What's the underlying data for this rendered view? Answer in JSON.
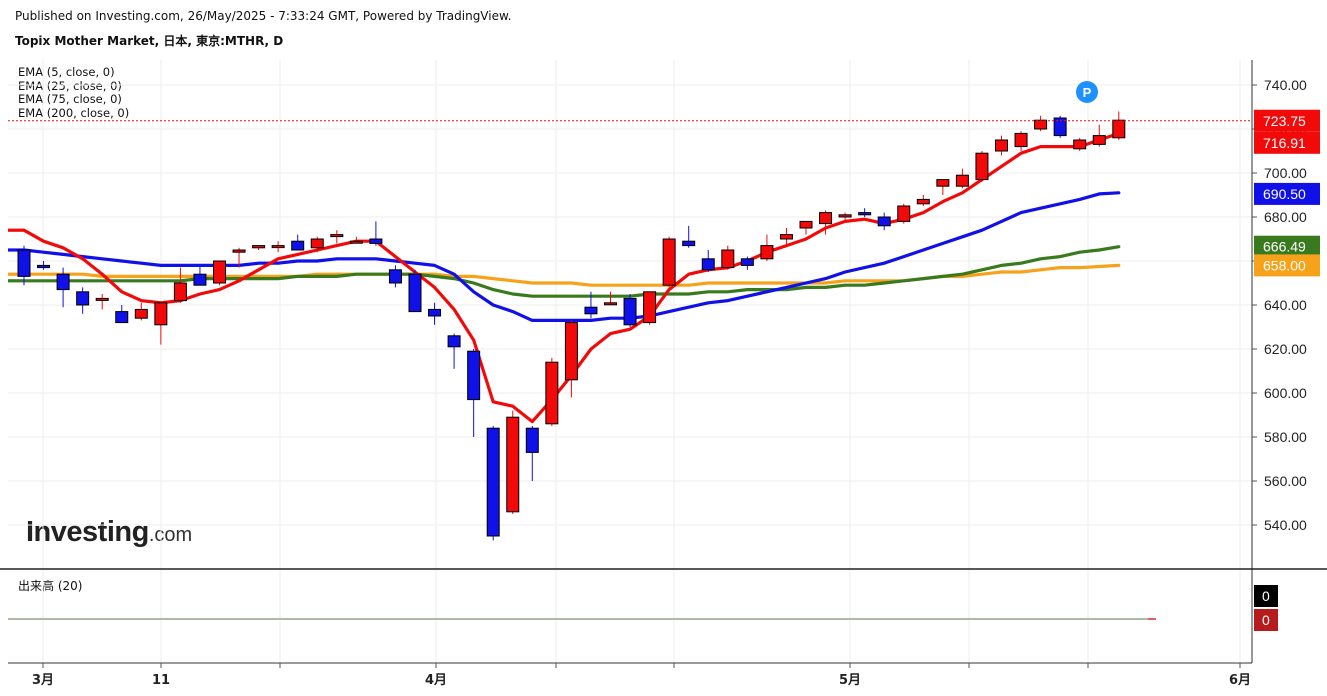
{
  "header": {
    "published": "Published on Investing.com, 26/May/2025 - 7:33:24 GMT, Powered by TradingView.",
    "symbol": "Topix Mother Market, 日本, 東京:MTHR, D"
  },
  "legend": {
    "items": [
      "EMA (5, close, 0)",
      "EMA (25, close, 0)",
      "EMA (75, close, 0)",
      "EMA (200, close, 0)"
    ]
  },
  "volume_panel": {
    "label": "出来高 (20)"
  },
  "logo": {
    "main": "Investing",
    "suffix": ".com"
  },
  "badge": {
    "text": "P"
  },
  "colors": {
    "up": "#f20a0a",
    "down": "#1010e8",
    "ema5": "#f20a0a",
    "ema25": "#1010e8",
    "ema75": "#3a7a1e",
    "ema200": "#f7a21b",
    "last_price_line": "#f20a0a",
    "badge": "#1e90ff"
  },
  "chart_data": {
    "type": "candlestick",
    "ylim": [
      520,
      747
    ],
    "y_ticks": [
      "740.00",
      "720.00",
      "700.00",
      "680.00",
      "660.00",
      "640.00",
      "620.00",
      "600.00",
      "580.00",
      "560.00",
      "540.00"
    ],
    "x_ticks": [
      "3月",
      "11",
      "4月",
      "5月",
      "6月"
    ],
    "price_labels": [
      {
        "text": "723.75",
        "value": 723.75,
        "bg": "#f20a0a"
      },
      {
        "text": "716.91",
        "value": 716.91,
        "bg": "#f20a0a"
      },
      {
        "text": "690.50",
        "value": 690.5,
        "bg": "#1010e8"
      },
      {
        "text": "666.49",
        "value": 666.49,
        "bg": "#3a7a1e"
      },
      {
        "text": "658.00",
        "value": 658.0,
        "bg": "#f7a21b"
      }
    ],
    "last_price": 723.75,
    "candles": [
      {
        "o": 665,
        "h": 667,
        "l": 649,
        "c": 653
      },
      {
        "o": 658,
        "h": 660,
        "l": 656,
        "c": 657
      },
      {
        "o": 654,
        "h": 657,
        "l": 639,
        "c": 647
      },
      {
        "o": 646,
        "h": 648,
        "l": 636,
        "c": 640
      },
      {
        "o": 643,
        "h": 645,
        "l": 638,
        "c": 643
      },
      {
        "o": 637,
        "h": 640,
        "l": 632,
        "c": 632
      },
      {
        "o": 634,
        "h": 641,
        "l": 633,
        "c": 638
      },
      {
        "o": 631,
        "h": 641,
        "l": 622,
        "c": 641
      },
      {
        "o": 642,
        "h": 657,
        "l": 641,
        "c": 650
      },
      {
        "o": 654,
        "h": 658,
        "l": 649,
        "c": 649
      },
      {
        "o": 650,
        "h": 660,
        "l": 649,
        "c": 660
      },
      {
        "o": 664,
        "h": 666,
        "l": 657,
        "c": 665
      },
      {
        "o": 666,
        "h": 667,
        "l": 665,
        "c": 667
      },
      {
        "o": 667,
        "h": 669,
        "l": 664,
        "c": 667
      },
      {
        "o": 669,
        "h": 672,
        "l": 665,
        "c": 665
      },
      {
        "o": 666,
        "h": 671,
        "l": 664,
        "c": 670
      },
      {
        "o": 672,
        "h": 674,
        "l": 668,
        "c": 672
      },
      {
        "o": 669,
        "h": 671,
        "l": 668,
        "c": 669
      },
      {
        "o": 670,
        "h": 678,
        "l": 667,
        "c": 668
      },
      {
        "o": 656,
        "h": 658,
        "l": 648,
        "c": 650
      },
      {
        "o": 654,
        "h": 656,
        "l": 637,
        "c": 637
      },
      {
        "o": 638,
        "h": 641,
        "l": 631,
        "c": 635
      },
      {
        "o": 626,
        "h": 627,
        "l": 611,
        "c": 621
      },
      {
        "o": 619,
        "h": 620,
        "l": 580,
        "c": 597
      },
      {
        "o": 584,
        "h": 585,
        "l": 533,
        "c": 535
      },
      {
        "o": 546,
        "h": 592,
        "l": 545,
        "c": 589
      },
      {
        "o": 584,
        "h": 585,
        "l": 560,
        "c": 573
      },
      {
        "o": 586,
        "h": 616,
        "l": 585,
        "c": 614
      },
      {
        "o": 606,
        "h": 633,
        "l": 598,
        "c": 632
      },
      {
        "o": 639,
        "h": 646,
        "l": 634,
        "c": 636
      },
      {
        "o": 641,
        "h": 646,
        "l": 640,
        "c": 641
      },
      {
        "o": 643,
        "h": 645,
        "l": 630,
        "c": 631
      },
      {
        "o": 632,
        "h": 646,
        "l": 631,
        "c": 646
      },
      {
        "o": 649,
        "h": 671,
        "l": 648,
        "c": 670
      },
      {
        "o": 669,
        "h": 676,
        "l": 666,
        "c": 667
      },
      {
        "o": 661,
        "h": 665,
        "l": 655,
        "c": 656
      },
      {
        "o": 657,
        "h": 667,
        "l": 656,
        "c": 665
      },
      {
        "o": 661,
        "h": 662,
        "l": 656,
        "c": 658
      },
      {
        "o": 661,
        "h": 672,
        "l": 660,
        "c": 667
      },
      {
        "o": 670,
        "h": 675,
        "l": 667,
        "c": 672
      },
      {
        "o": 675,
        "h": 678,
        "l": 672,
        "c": 678
      },
      {
        "o": 677,
        "h": 683,
        "l": 672,
        "c": 682
      },
      {
        "o": 680,
        "h": 682,
        "l": 678,
        "c": 681
      },
      {
        "o": 682,
        "h": 684,
        "l": 680,
        "c": 681
      },
      {
        "o": 680,
        "h": 682,
        "l": 674,
        "c": 676
      },
      {
        "o": 678,
        "h": 686,
        "l": 677,
        "c": 685
      },
      {
        "o": 686,
        "h": 690,
        "l": 685,
        "c": 688
      },
      {
        "o": 694,
        "h": 697,
        "l": 690,
        "c": 697
      },
      {
        "o": 694,
        "h": 702,
        "l": 693,
        "c": 699
      },
      {
        "o": 697,
        "h": 710,
        "l": 696,
        "c": 709
      },
      {
        "o": 710,
        "h": 717,
        "l": 708,
        "c": 715
      },
      {
        "o": 712,
        "h": 719,
        "l": 710,
        "c": 718
      },
      {
        "o": 720,
        "h": 726,
        "l": 719,
        "c": 724
      },
      {
        "o": 725,
        "h": 726,
        "l": 716,
        "c": 717
      },
      {
        "o": 711,
        "h": 716,
        "l": 710,
        "c": 715
      },
      {
        "o": 713,
        "h": 722,
        "l": 712,
        "c": 717
      },
      {
        "o": 716,
        "h": 728,
        "l": 715,
        "c": 724
      }
    ],
    "series": [
      {
        "name": "EMA (5, close, 0)",
        "period": 5,
        "color": "#f20a0a",
        "values": [
          674,
          669,
          666,
          661,
          654,
          646,
          642,
          641,
          642,
          645,
          647,
          651,
          656,
          661,
          663,
          665,
          667,
          669,
          669,
          662,
          655,
          648,
          638,
          624,
          596,
          594,
          587,
          597,
          608,
          620,
          627,
          629,
          635,
          647,
          654,
          656,
          657,
          660,
          664,
          667,
          670,
          675,
          678,
          679,
          677,
          679,
          682,
          687,
          691,
          697,
          703,
          709,
          712,
          712,
          712,
          715,
          718
        ]
      },
      {
        "name": "EMA (25, close, 0)",
        "period": 25,
        "color": "#1010e8",
        "values": [
          665,
          664,
          663,
          662,
          661,
          660,
          659,
          658,
          658,
          658,
          658,
          658,
          659,
          659,
          660,
          660,
          661,
          661,
          661,
          660,
          659,
          658,
          654,
          646,
          640,
          637,
          633,
          633,
          633,
          633,
          634,
          634,
          635,
          637,
          639,
          641,
          642,
          644,
          646,
          648,
          650,
          652,
          655,
          657,
          659,
          662,
          665,
          668,
          671,
          674,
          678,
          682,
          684,
          686,
          688,
          690.5,
          691
        ]
      },
      {
        "name": "EMA (75, close, 0)",
        "period": 75,
        "color": "#3a7a1e",
        "values": [
          651,
          651,
          651,
          651,
          651,
          651,
          651,
          651,
          651,
          652,
          652,
          652,
          652,
          652,
          653,
          653,
          653,
          654,
          654,
          654,
          654,
          653,
          652,
          650,
          647,
          645,
          644,
          644,
          644,
          644,
          644,
          644,
          645,
          645,
          645,
          646,
          646,
          647,
          647,
          647,
          648,
          648,
          649,
          649,
          650,
          651,
          652,
          653,
          654,
          656,
          658,
          659,
          661,
          662,
          664,
          665,
          666.5
        ]
      },
      {
        "name": "EMA (200, close, 0)",
        "period": 200,
        "color": "#f7a21b",
        "values": [
          654,
          654,
          654,
          654,
          653,
          653,
          653,
          653,
          653,
          653,
          653,
          653,
          653,
          653,
          653,
          654,
          654,
          654,
          654,
          654,
          654,
          654,
          653,
          653,
          652,
          651,
          650,
          650,
          650,
          649,
          649,
          649,
          649,
          649,
          649,
          650,
          650,
          650,
          650,
          650,
          650,
          650,
          651,
          651,
          651,
          651,
          652,
          653,
          653,
          654,
          655,
          655,
          656,
          657,
          657,
          657.5,
          658
        ]
      }
    ],
    "volume": {
      "last_values": [
        "0",
        "0"
      ],
      "label_colors": [
        "#000000",
        "#b71c1c"
      ]
    }
  }
}
